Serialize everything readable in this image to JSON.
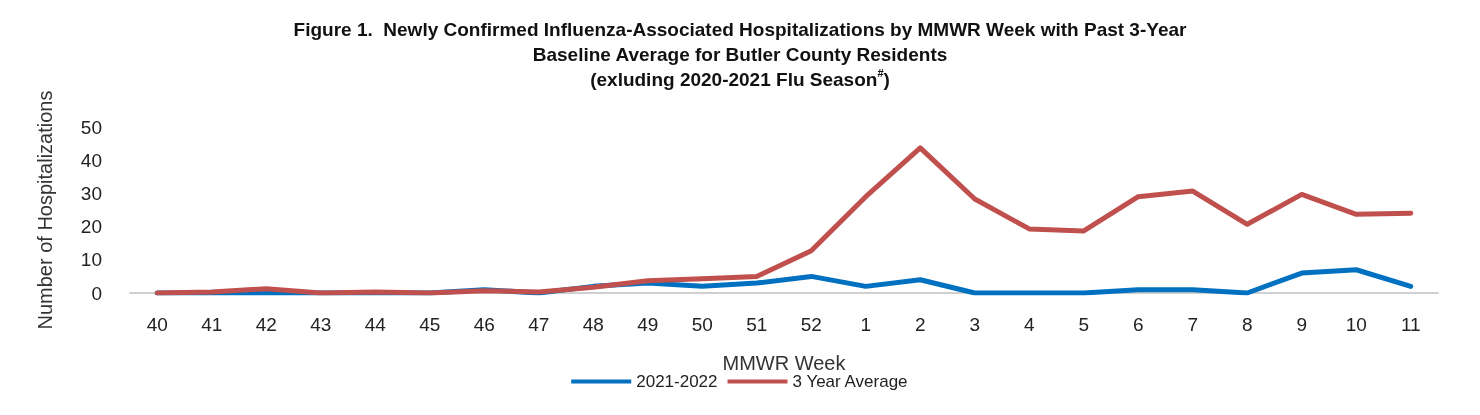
{
  "chart_data": {
    "type": "line",
    "title": "Figure 1.  Newly Confirmed Influenza-Associated Hospitalizations by MMWR Week with Past 3-Year\nBaseline Average for Butler County Residents\n(exluding 2020-2021 Flu Season$^{#}$)",
    "xlabel": "MMWR Week",
    "ylabel": "Number of Hospitalizations",
    "categories": [
      "40",
      "41",
      "42",
      "43",
      "44",
      "45",
      "46",
      "47",
      "48",
      "49",
      "50",
      "51",
      "52",
      "1",
      "2",
      "3",
      "4",
      "5",
      "6",
      "7",
      "8",
      "9",
      "10",
      "11"
    ],
    "series": [
      {
        "name": "2021-2022",
        "color": "#0070c0",
        "values": [
          0,
          0,
          0,
          0,
          0,
          0,
          1,
          0,
          2,
          3,
          2,
          3,
          5,
          2,
          4,
          0,
          0,
          0,
          1,
          1,
          0,
          6,
          7,
          2
        ]
      },
      {
        "name": "3 Year Average",
        "color": "#c0504d",
        "values": [
          0,
          0.3,
          1.3,
          0,
          0.3,
          0,
          0.7,
          0.3,
          1.7,
          3.7,
          4.3,
          5,
          12.7,
          29,
          43.7,
          28.3,
          19.3,
          18.7,
          29,
          30.7,
          20.7,
          29.7,
          23.7,
          24
        ]
      }
    ],
    "ylim": [
      0,
      50
    ],
    "yticks": [
      0,
      10,
      20,
      30,
      40,
      50
    ],
    "grid": false,
    "legend": "bottom",
    "marker": "none",
    "line_style": "solid"
  }
}
